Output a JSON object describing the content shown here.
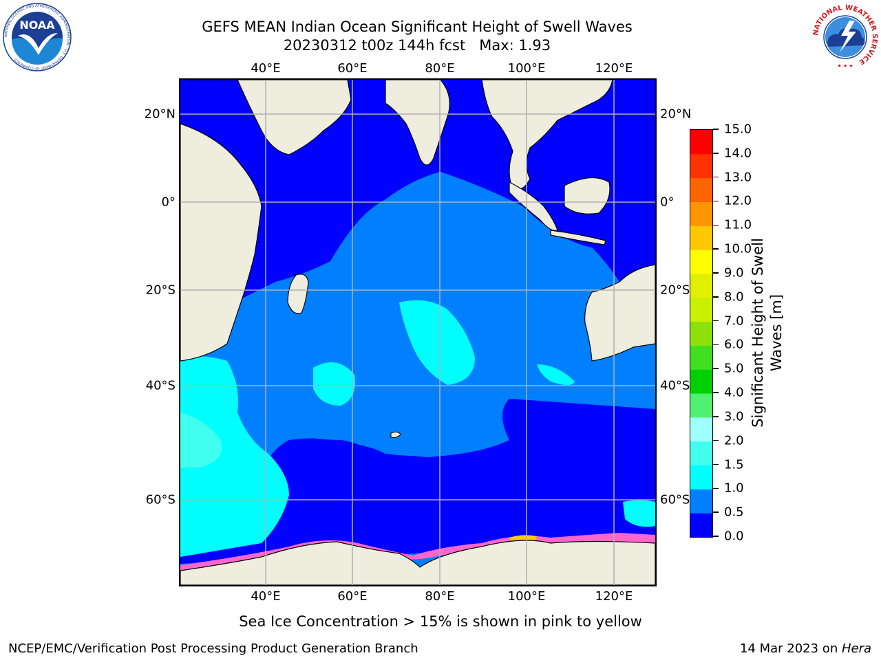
{
  "title_line1": "GEFS MEAN Indian Ocean Significant Height of Swell Waves",
  "title_line2": "20230312 t00z 144h fcst   Max: 1.93",
  "map": {
    "lon_ticks": [
      "40°E",
      "60°E",
      "80°E",
      "100°E",
      "120°E"
    ],
    "lat_ticks": [
      "20°N",
      "0°",
      "20°S",
      "40°S",
      "60°S"
    ],
    "land_color": "#efedde",
    "gridline_color": "#b0b0b0"
  },
  "colorbar": {
    "label": "Significant Height of Swell Waves [m]",
    "label_line1": "Significant Height of Swell",
    "label_line2": "Waves [m]",
    "tick_labels": [
      "0.0",
      "0.5",
      "1.0",
      "1.5",
      "2.0",
      "3.0",
      "4.0",
      "5.0",
      "6.0",
      "7.0",
      "8.0",
      "9.0",
      "10.0",
      "11.0",
      "12.0",
      "13.0",
      "14.0",
      "15.0"
    ],
    "colors": [
      "#0000ff",
      "#0080ff",
      "#00ffff",
      "#40ffef",
      "#a0ffff",
      "#50f070",
      "#00d000",
      "#40e020",
      "#8ee00a",
      "#c8f000",
      "#e0f000",
      "#ffff00",
      "#ffc800",
      "#ff9600",
      "#ff6400",
      "#ff3200",
      "#ff0000"
    ]
  },
  "ice_note": "Sea Ice Concentration > 15% is shown in pink to yellow",
  "footer_left": "NCEP/EMC/Verification Post Processing Product Generation Branch",
  "footer_right_date": "14 Mar 2023 on ",
  "footer_right_host": "Hera",
  "logos": {
    "noaa_text": "NOAA",
    "noaa_ring": "NATIONAL OCEANIC AND ATMOSPHERIC ADMINISTRATION · U.S. DEPARTMENT OF COMMERCE",
    "nws_ring": "NATIONAL WEATHER SERVICE"
  }
}
